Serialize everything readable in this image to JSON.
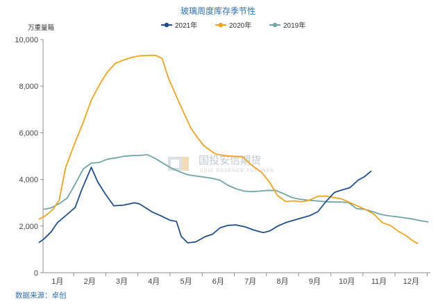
{
  "chart_data": {
    "type": "line",
    "title": "玻璃周度库存季节性",
    "unit_label": "万重量箱",
    "source": "数据来源：卓创",
    "watermark": {
      "cn": "国投安信期货",
      "en": "SDIC ESSENCE FUTURES"
    },
    "ylim": [
      0,
      10000
    ],
    "yticks": [
      0,
      2000,
      4000,
      6000,
      8000,
      10000
    ],
    "ytick_labels": [
      "0",
      "2,000",
      "4,000",
      "6,000",
      "8,000",
      "10,000"
    ],
    "xlim": [
      0.55,
      12.6
    ],
    "categories": [
      "1月",
      "2月",
      "3月",
      "4月",
      "5月",
      "6月",
      "7月",
      "8月",
      "9月",
      "10月",
      "11月",
      "12月"
    ],
    "grid": false,
    "legend_position": "top-center",
    "series": [
      {
        "name": "2021年",
        "color": "#1F4E8C",
        "x": [
          0.43,
          0.58,
          0.8,
          1.0,
          1.3,
          1.55,
          1.75,
          2.05,
          2.25,
          2.5,
          2.75,
          3.05,
          3.4,
          3.55,
          3.95,
          4.2,
          4.5,
          4.7,
          4.85,
          5.05,
          5.3,
          5.6,
          5.82,
          6.05,
          6.3,
          6.55,
          6.85,
          7.1,
          7.4,
          7.6,
          7.85,
          8.1,
          8.35,
          8.6,
          8.85,
          9.1,
          9.35,
          9.62,
          9.85,
          10.1,
          10.35,
          10.55,
          10.75
        ],
        "y": [
          1300,
          1450,
          1750,
          2150,
          2500,
          2800,
          3550,
          4520,
          3900,
          3350,
          2870,
          2900,
          3000,
          2950,
          2600,
          2450,
          2250,
          2200,
          1550,
          1280,
          1320,
          1550,
          1650,
          1920,
          2030,
          2050,
          1960,
          1830,
          1720,
          1790,
          2000,
          2150,
          2250,
          2350,
          2450,
          2620,
          3050,
          3450,
          3550,
          3650,
          3970,
          4120,
          4350
        ]
      },
      {
        "name": "2020年",
        "color": "#F2A31C",
        "x": [
          0.43,
          0.6,
          0.85,
          1.05,
          1.25,
          1.55,
          1.8,
          2.05,
          2.3,
          2.55,
          2.8,
          3.05,
          3.3,
          3.55,
          3.8,
          4.05,
          4.25,
          4.45,
          4.7,
          4.9,
          5.15,
          5.35,
          5.55,
          5.9,
          6.15,
          6.45,
          6.75,
          7.05,
          7.35,
          7.6,
          7.85,
          8.1,
          8.35,
          8.6,
          8.85,
          9.1,
          9.35,
          9.6,
          9.85,
          10.1,
          10.35,
          10.6,
          10.85,
          11.1,
          11.35,
          11.6,
          11.85,
          12.05,
          12.2
        ],
        "y": [
          2300,
          2420,
          2700,
          3100,
          4500,
          5600,
          6450,
          7400,
          8050,
          8600,
          8980,
          9120,
          9230,
          9300,
          9320,
          9320,
          9200,
          8350,
          7550,
          6950,
          6200,
          5800,
          5450,
          5100,
          5030,
          4990,
          4980,
          4600,
          4300,
          3870,
          3300,
          3050,
          3080,
          3040,
          3120,
          3280,
          3290,
          3220,
          3160,
          3000,
          2850,
          2700,
          2500,
          2150,
          2030,
          1780,
          1580,
          1370,
          1260
        ]
      },
      {
        "name": "2019年",
        "color": "#6FA5A5",
        "x": [
          0.58,
          0.8,
          1.05,
          1.3,
          1.55,
          1.8,
          2.05,
          2.3,
          2.55,
          2.8,
          3.05,
          3.3,
          3.55,
          3.8,
          4.05,
          4.3,
          4.55,
          4.8,
          5.05,
          5.3,
          5.55,
          5.8,
          6.05,
          6.3,
          6.55,
          6.8,
          7.05,
          7.3,
          7.55,
          7.8,
          8.05,
          8.3,
          8.55,
          8.8,
          9.05,
          9.3,
          9.55,
          9.8,
          10.05,
          10.3,
          10.55,
          10.8,
          11.05,
          11.3,
          11.55,
          11.8,
          12.05,
          12.3,
          12.52
        ],
        "y": [
          2720,
          2780,
          2960,
          3200,
          3800,
          4450,
          4700,
          4730,
          4870,
          4920,
          4990,
          5020,
          5030,
          5060,
          4890,
          4680,
          4480,
          4330,
          4200,
          4150,
          4100,
          4050,
          3970,
          3750,
          3600,
          3500,
          3480,
          3500,
          3530,
          3520,
          3380,
          3220,
          3150,
          3110,
          3080,
          3050,
          3030,
          3030,
          3010,
          2750,
          2720,
          2620,
          2500,
          2440,
          2400,
          2350,
          2300,
          2230,
          2180
        ]
      }
    ]
  }
}
